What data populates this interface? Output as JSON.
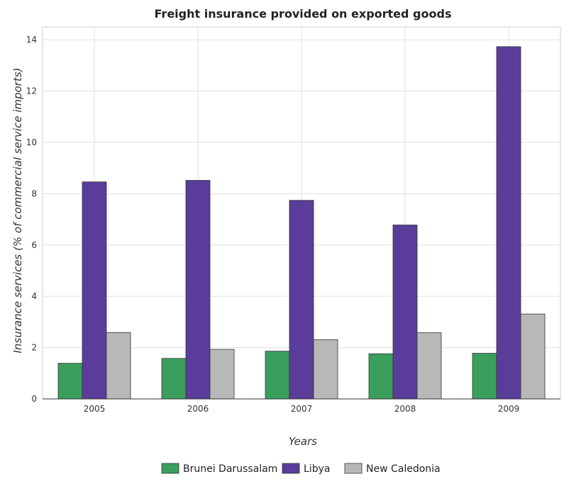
{
  "chart_data": {
    "type": "bar",
    "title": "Freight insurance provided on exported goods",
    "xlabel": "Years",
    "ylabel": "Insurance services (% of commercial service imports)",
    "categories": [
      "2005",
      "2006",
      "2007",
      "2008",
      "2009"
    ],
    "ylim": [
      0,
      14.5
    ],
    "yticks": [
      0,
      2,
      4,
      6,
      8,
      10,
      12,
      14
    ],
    "grid": true,
    "legend_position": "bottom-center",
    "series": [
      {
        "name": "Brunei Darussalam",
        "color": "#3a9e5c",
        "values": [
          1.39,
          1.58,
          1.86,
          1.76,
          1.78
        ]
      },
      {
        "name": "Libya",
        "color": "#5a3d9a",
        "values": [
          8.46,
          8.52,
          7.74,
          6.78,
          13.73
        ]
      },
      {
        "name": "New Caledonia",
        "color": "#b8b8b8",
        "values": [
          2.59,
          1.93,
          2.31,
          2.58,
          3.31
        ]
      }
    ]
  }
}
